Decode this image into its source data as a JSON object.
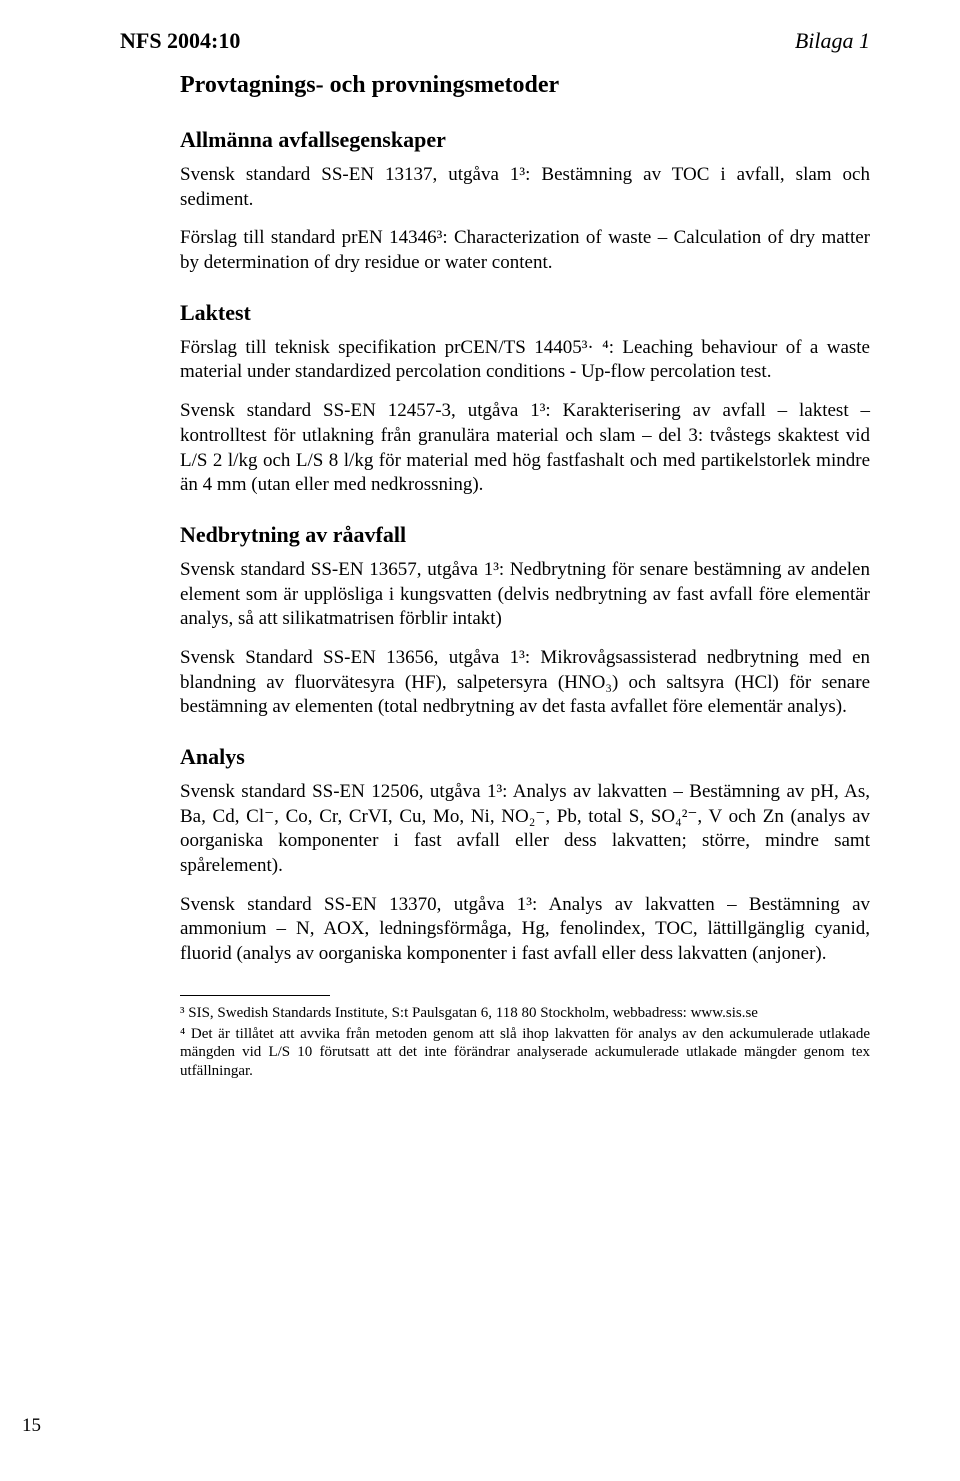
{
  "colors": {
    "text": "#000000",
    "background": "#ffffff"
  },
  "typography": {
    "body_family": "Times New Roman",
    "body_size_pt": 14,
    "heading_size_pt": 16,
    "footnote_size_pt": 11
  },
  "header": {
    "document_code": "NFS 2004:10",
    "attachment_label": "Bilaga 1"
  },
  "title": "Provtagnings- och provningsmetoder",
  "sections": [
    {
      "heading": "Allmänna avfallsegenskaper",
      "paragraphs": [
        "Svensk standard SS-EN 13137, utgåva 1³: Bestämning av TOC i avfall, slam och sediment.",
        "Förslag till standard prEN 14346³: Characterization of waste – Calculation of dry matter by determination of dry residue or water content."
      ]
    },
    {
      "heading": "Laktest",
      "paragraphs": [
        "Förslag till teknisk specifikation prCEN/TS 14405³· ⁴: Leaching behaviour of a waste material under standardized percolation conditions - Up-flow percolation test.",
        "Svensk standard SS-EN 12457-3, utgåva 1³: Karakterisering av avfall – laktest – kontrolltest för utlakning från granulära material och slam – del 3: tvåstegs skaktest vid L/S 2 l/kg och L/S 8 l/kg för material med hög fastfashalt och med partikelstorlek mindre än 4 mm (utan eller med nedkrossning)."
      ]
    },
    {
      "heading": "Nedbrytning av råavfall",
      "paragraphs": [
        "Svensk standard SS-EN 13657, utgåva 1³: Nedbrytning för senare bestämning av andelen element som är upplösliga i kungsvatten (delvis nedbrytning av fast avfall före elementär analys, så att silikatmatrisen förblir intakt)",
        "Svensk Standard SS-EN 13656, utgåva 1³: Mikrovågsassisterad nedbrytning med en blandning av fluorvätesyra (HF), salpetersyra (HNO₃) och saltsyra (HCl) för senare bestämning av elementen (total nedbrytning av det fasta avfallet före elementär analys)."
      ]
    },
    {
      "heading": "Analys",
      "paragraphs": [
        "Svensk standard SS-EN 12506, utgåva 1³: Analys av lakvatten – Bestämning av pH, As, Ba, Cd, Cl⁻, Co, Cr, CrVI, Cu, Mo, Ni, NO₂⁻, Pb, total S, SO₄²⁻, V och Zn (analys av oorganiska komponenter i fast avfall eller dess lakvatten; större, mindre samt spårelement).",
        "Svensk standard SS-EN 13370, utgåva 1³: Analys av lakvatten – Bestämning av ammonium – N, AOX, ledningsförmåga, Hg, fenolindex, TOC, lättillgänglig cyanid, fluorid (analys av oorganiska komponenter i fast avfall eller dess lakvatten (anjoner)."
      ]
    }
  ],
  "footnotes": [
    "³ SIS, Swedish Standards Institute, S:t Paulsgatan 6, 118 80 Stockholm, webbadress: www.sis.se",
    "⁴ Det är tillåtet att avvika från metoden genom att slå ihop lakvatten för analys av den ackumulerade utlakade mängden vid L/S 10 förutsatt att det inte förändrar analyserade ackumulerade utlakade mängder genom tex utfällningar."
  ],
  "page_number": "15"
}
